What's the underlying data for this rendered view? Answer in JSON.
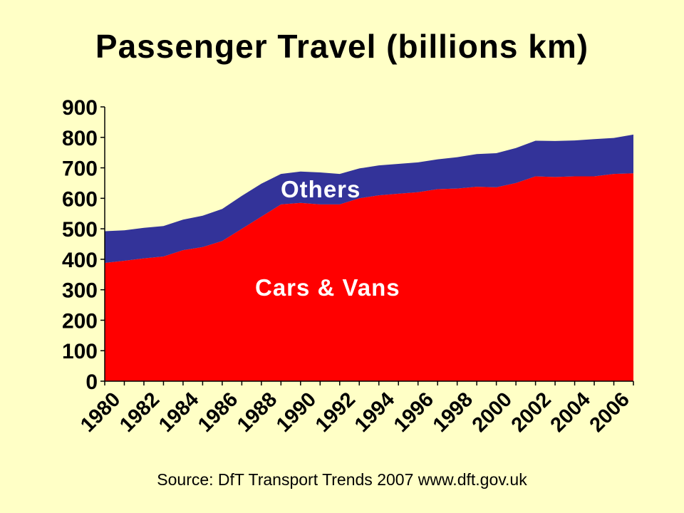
{
  "chart_data": {
    "type": "area",
    "title": "Passenger Travel (billions km)",
    "source": "Source: DfT Transport Trends 2007 www.dft.gov.uk",
    "x": [
      1980,
      1981,
      1982,
      1983,
      1984,
      1985,
      1986,
      1987,
      1988,
      1989,
      1990,
      1991,
      1992,
      1993,
      1994,
      1995,
      1996,
      1997,
      1998,
      1999,
      2000,
      2001,
      2002,
      2003,
      2004,
      2005,
      2006,
      2007
    ],
    "series": [
      {
        "name": "Cars & Vans",
        "color": "#FF0000",
        "values": [
          388,
          395,
          403,
          409,
          430,
          440,
          460,
          500,
          540,
          580,
          585,
          580,
          580,
          600,
          610,
          615,
          620,
          630,
          632,
          638,
          636,
          650,
          672,
          670,
          672,
          672,
          680,
          682
        ]
      },
      {
        "name": "Others",
        "color": "#333399",
        "values": [
          104,
          100,
          100,
          100,
          100,
          103,
          105,
          108,
          108,
          100,
          103,
          105,
          100,
          98,
          98,
          98,
          98,
          98,
          103,
          107,
          112,
          115,
          117,
          118,
          118,
          122,
          118,
          127
        ]
      }
    ],
    "stacked": true,
    "ylim": [
      0,
      900
    ],
    "y_ticks": [
      "0",
      "100",
      "200",
      "300",
      "400",
      "500",
      "600",
      "700",
      "800",
      "900"
    ],
    "x_tick_labels": [
      "1980",
      "1982",
      "1984",
      "1986",
      "1988",
      "1990",
      "1992",
      "1994",
      "1996",
      "1998",
      "2000",
      "2002",
      "2004",
      "2006"
    ],
    "xlabel": "",
    "ylabel": "",
    "grid": false,
    "legend": "none"
  }
}
